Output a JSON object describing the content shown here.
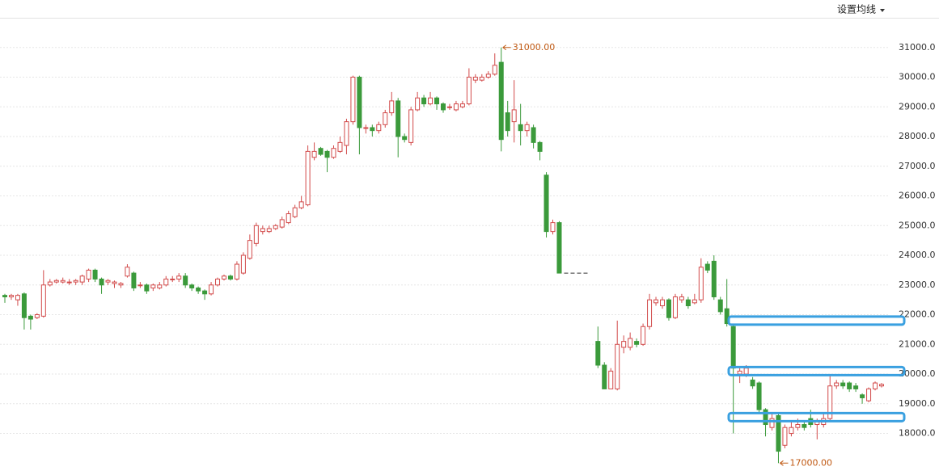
{
  "chart_data": {
    "type": "candlestick",
    "settings_button": "设置均线",
    "ylim": [
      16600,
      32000
    ],
    "yticks": [
      {
        "value": 18000,
        "label": "18000.0"
      },
      {
        "value": 19000,
        "label": "19000.0"
      },
      {
        "value": 20000,
        "label": "20000.0"
      },
      {
        "value": 21000,
        "label": "21000.0"
      },
      {
        "value": 22000,
        "label": "22000.0"
      },
      {
        "value": 23000,
        "label": "23000.0"
      },
      {
        "value": 24000,
        "label": "24000.0"
      },
      {
        "value": 25000,
        "label": "25000.0"
      },
      {
        "value": 26000,
        "label": "26000.0"
      },
      {
        "value": 27000,
        "label": "27000.0"
      },
      {
        "value": 28000,
        "label": "28000.0"
      },
      {
        "value": 29000,
        "label": "29000.0"
      },
      {
        "value": 30000,
        "label": "30000.0"
      },
      {
        "value": 31000,
        "label": "31000.0"
      }
    ],
    "grid": true,
    "up_color": "#d24a4a",
    "down_color": "#3b9a3b",
    "level_color": "#3aa0e0",
    "annotations": [
      {
        "value": 31000,
        "label": "31000.00"
      },
      {
        "value": 17000,
        "label": "17000.00"
      }
    ],
    "levels": [
      21800,
      20100,
      18550
    ],
    "candles": [
      {
        "open": 22650,
        "close": 22600,
        "high": 22700,
        "low": 22400
      },
      {
        "open": 22600,
        "close": 22650,
        "high": 22700,
        "low": 22500
      },
      {
        "open": 22500,
        "close": 22650,
        "high": 22700,
        "low": 22300
      },
      {
        "open": 22700,
        "close": 21900,
        "high": 22750,
        "low": 21500
      },
      {
        "open": 21950,
        "close": 21850,
        "high": 22000,
        "low": 21500
      },
      {
        "open": 21900,
        "close": 22000,
        "high": 22050,
        "low": 21850
      },
      {
        "open": 21950,
        "close": 23000,
        "high": 23500,
        "low": 21900
      },
      {
        "open": 23000,
        "close": 23100,
        "high": 23200,
        "low": 22950
      },
      {
        "open": 23100,
        "close": 23150,
        "high": 23200,
        "low": 23050
      },
      {
        "open": 23100,
        "close": 23150,
        "high": 23250,
        "low": 23050
      },
      {
        "open": 23100,
        "close": 23100,
        "high": 23200,
        "low": 23000
      },
      {
        "open": 23100,
        "close": 23150,
        "high": 23200,
        "low": 23000
      },
      {
        "open": 23100,
        "close": 23300,
        "high": 23350,
        "low": 23000
      },
      {
        "open": 23200,
        "close": 23500,
        "high": 23550,
        "low": 23100
      },
      {
        "open": 23500,
        "close": 23200,
        "high": 23550,
        "low": 23100
      },
      {
        "open": 23200,
        "close": 23000,
        "high": 23250,
        "low": 22700
      },
      {
        "open": 23100,
        "close": 23150,
        "high": 23200,
        "low": 23000
      },
      {
        "open": 23050,
        "close": 23100,
        "high": 23150,
        "low": 22900
      },
      {
        "open": 23000,
        "close": 23050,
        "high": 23100,
        "low": 22900
      },
      {
        "open": 23300,
        "close": 23600,
        "high": 23700,
        "low": 23250
      },
      {
        "open": 23400,
        "close": 22900,
        "high": 23450,
        "low": 22800
      },
      {
        "open": 23000,
        "close": 23000,
        "high": 23100,
        "low": 22900
      },
      {
        "open": 23000,
        "close": 22800,
        "high": 23050,
        "low": 22700
      },
      {
        "open": 22900,
        "close": 23000,
        "high": 23050,
        "low": 22800
      },
      {
        "open": 22900,
        "close": 23000,
        "high": 23100,
        "low": 22850
      },
      {
        "open": 23000,
        "close": 23200,
        "high": 23300,
        "low": 22950
      },
      {
        "open": 23200,
        "close": 23200,
        "high": 23300,
        "low": 23100
      },
      {
        "open": 23200,
        "close": 23300,
        "high": 23400,
        "low": 23100
      },
      {
        "open": 23300,
        "close": 23000,
        "high": 23400,
        "low": 22900
      },
      {
        "open": 23000,
        "close": 22900,
        "high": 23050,
        "low": 22800
      },
      {
        "open": 22900,
        "close": 22800,
        "high": 22950,
        "low": 22700
      },
      {
        "open": 22800,
        "close": 22700,
        "high": 22850,
        "low": 22500
      },
      {
        "open": 22700,
        "close": 23000,
        "high": 23100,
        "low": 22650
      },
      {
        "open": 23000,
        "close": 23200,
        "high": 23250,
        "low": 22950
      },
      {
        "open": 23200,
        "close": 23300,
        "high": 23350,
        "low": 23150
      },
      {
        "open": 23300,
        "close": 23200,
        "high": 23350,
        "low": 23150
      },
      {
        "open": 23200,
        "close": 23700,
        "high": 23800,
        "low": 23150
      },
      {
        "open": 23400,
        "close": 24000,
        "high": 24100,
        "low": 23350
      },
      {
        "open": 23900,
        "close": 24500,
        "high": 24700,
        "low": 23850
      },
      {
        "open": 24400,
        "close": 25000,
        "high": 25100,
        "low": 24300
      },
      {
        "open": 24800,
        "close": 24900,
        "high": 25000,
        "low": 24700
      },
      {
        "open": 24800,
        "close": 24900,
        "high": 25000,
        "low": 24750
      },
      {
        "open": 24900,
        "close": 25000,
        "high": 25050,
        "low": 24850
      },
      {
        "open": 24950,
        "close": 25200,
        "high": 25300,
        "low": 24900
      },
      {
        "open": 25100,
        "close": 25400,
        "high": 25500,
        "low": 25050
      },
      {
        "open": 25300,
        "close": 25600,
        "high": 25700,
        "low": 25250
      },
      {
        "open": 25600,
        "close": 25800,
        "high": 26000,
        "low": 25550
      },
      {
        "open": 25700,
        "close": 27500,
        "high": 27700,
        "low": 25650
      },
      {
        "open": 27300,
        "close": 27500,
        "high": 27800,
        "low": 27200
      },
      {
        "open": 27600,
        "close": 27400,
        "high": 27650,
        "low": 27350
      },
      {
        "open": 27500,
        "close": 27300,
        "high": 27550,
        "low": 26800
      },
      {
        "open": 27300,
        "close": 27600,
        "high": 27700,
        "low": 27250
      },
      {
        "open": 27500,
        "close": 27800,
        "high": 28000,
        "low": 27450
      },
      {
        "open": 27700,
        "close": 28500,
        "high": 28600,
        "low": 27400
      },
      {
        "open": 28500,
        "close": 30000,
        "high": 30050,
        "low": 28400
      },
      {
        "open": 30000,
        "close": 28300,
        "high": 30050,
        "low": 27400
      },
      {
        "open": 28300,
        "close": 28300,
        "high": 28400,
        "low": 28100
      },
      {
        "open": 28300,
        "close": 28200,
        "high": 28400,
        "low": 28000
      },
      {
        "open": 28200,
        "close": 28400,
        "high": 28500,
        "low": 28100
      },
      {
        "open": 28400,
        "close": 28800,
        "high": 28900,
        "low": 28300
      },
      {
        "open": 28800,
        "close": 29200,
        "high": 29500,
        "low": 28700
      },
      {
        "open": 29200,
        "close": 28000,
        "high": 29300,
        "low": 27300
      },
      {
        "open": 28000,
        "close": 27900,
        "high": 28100,
        "low": 27800
      },
      {
        "open": 27800,
        "close": 28900,
        "high": 29000,
        "low": 27700
      },
      {
        "open": 28900,
        "close": 29300,
        "high": 29500,
        "low": 28850
      },
      {
        "open": 29300,
        "close": 29100,
        "high": 29400,
        "low": 29000
      },
      {
        "open": 29100,
        "close": 29300,
        "high": 29500,
        "low": 29050
      },
      {
        "open": 29300,
        "close": 29100,
        "high": 29350,
        "low": 28900
      },
      {
        "open": 29100,
        "close": 28900,
        "high": 29150,
        "low": 28800
      },
      {
        "open": 29000,
        "close": 29000,
        "high": 29100,
        "low": 28900
      },
      {
        "open": 28900,
        "close": 29100,
        "high": 29200,
        "low": 28850
      },
      {
        "open": 29000,
        "close": 29100,
        "high": 29200,
        "low": 28950
      },
      {
        "open": 29100,
        "close": 30000,
        "high": 30300,
        "low": 29050
      },
      {
        "open": 29900,
        "close": 30000,
        "high": 30100,
        "low": 29800
      },
      {
        "open": 29900,
        "close": 30000,
        "high": 30100,
        "low": 29850
      },
      {
        "open": 30000,
        "close": 30100,
        "high": 30200,
        "low": 29950
      },
      {
        "open": 30100,
        "close": 30400,
        "high": 30800,
        "low": 30050
      },
      {
        "open": 30500,
        "close": 27900,
        "high": 31000,
        "low": 27500
      },
      {
        "open": 28800,
        "close": 28200,
        "high": 29200,
        "low": 28000
      },
      {
        "open": 28500,
        "close": 28900,
        "high": 29900,
        "low": 27800
      },
      {
        "open": 28400,
        "close": 28200,
        "high": 29100,
        "low": 27700
      },
      {
        "open": 28200,
        "close": 28400,
        "high": 28500,
        "low": 28000
      },
      {
        "open": 28300,
        "close": 27800,
        "high": 28400,
        "low": 27600
      },
      {
        "open": 27800,
        "close": 27500,
        "high": 27850,
        "low": 27200
      },
      {
        "open": 26700,
        "close": 24800,
        "high": 26800,
        "low": 24600
      },
      {
        "open": 24800,
        "close": 25100,
        "high": 25200,
        "low": 24700
      },
      {
        "open": 25100,
        "close": 23400,
        "high": 25150,
        "low": 23400
      },
      null,
      null,
      null,
      null,
      null,
      {
        "open": 21100,
        "close": 20300,
        "high": 21600,
        "low": 20200
      },
      {
        "open": 20300,
        "close": 19500,
        "high": 20400,
        "low": 19500
      },
      {
        "open": 19500,
        "close": 20100,
        "high": 20200,
        "low": 19500
      },
      {
        "open": 19500,
        "close": 21000,
        "high": 21800,
        "low": 19450
      },
      {
        "open": 20900,
        "close": 21100,
        "high": 21300,
        "low": 20700
      },
      {
        "open": 20900,
        "close": 21200,
        "high": 21400,
        "low": 20800
      },
      {
        "open": 21100,
        "close": 21000,
        "high": 21200,
        "low": 20900
      },
      {
        "open": 21000,
        "close": 21600,
        "high": 21700,
        "low": 20950
      },
      {
        "open": 21600,
        "close": 22500,
        "high": 22700,
        "low": 21500
      },
      {
        "open": 22400,
        "close": 22500,
        "high": 22600,
        "low": 22300
      },
      {
        "open": 22300,
        "close": 22500,
        "high": 22600,
        "low": 22200
      },
      {
        "open": 22500,
        "close": 21900,
        "high": 22550,
        "low": 21800
      },
      {
        "open": 21900,
        "close": 22600,
        "high": 22700,
        "low": 21850
      },
      {
        "open": 22500,
        "close": 22600,
        "high": 22700,
        "low": 22400
      },
      {
        "open": 22500,
        "close": 22300,
        "high": 22600,
        "low": 22200
      },
      {
        "open": 22400,
        "close": 22500,
        "high": 22700,
        "low": 22350
      },
      {
        "open": 22500,
        "close": 23600,
        "high": 23900,
        "low": 22400
      },
      {
        "open": 23700,
        "close": 23500,
        "high": 23800,
        "low": 23400
      },
      {
        "open": 23800,
        "close": 22600,
        "high": 24000,
        "low": 22500
      },
      {
        "open": 22500,
        "close": 22100,
        "high": 22600,
        "low": 22000
      },
      {
        "open": 22200,
        "close": 21700,
        "high": 23200,
        "low": 21600
      },
      {
        "open": 21600,
        "close": 20200,
        "high": 21700,
        "low": 18000
      },
      {
        "open": 20000,
        "close": 20100,
        "high": 20200,
        "low": 19700
      },
      {
        "open": 20000,
        "close": 20200,
        "high": 20300,
        "low": 19900
      },
      {
        "open": 19800,
        "close": 19600,
        "high": 19900,
        "low": 19500
      },
      {
        "open": 19700,
        "close": 18800,
        "high": 19750,
        "low": 18700
      },
      {
        "open": 18800,
        "close": 18300,
        "high": 18850,
        "low": 17900
      },
      {
        "open": 18200,
        "close": 18500,
        "high": 18700,
        "low": 18100
      },
      {
        "open": 18600,
        "close": 17400,
        "high": 18700,
        "low": 17000
      },
      {
        "open": 17600,
        "close": 18200,
        "high": 18300,
        "low": 17500
      },
      {
        "open": 18000,
        "close": 18200,
        "high": 18400,
        "low": 17900
      },
      {
        "open": 18200,
        "close": 18300,
        "high": 18500,
        "low": 18100
      },
      {
        "open": 18300,
        "close": 18200,
        "high": 18400,
        "low": 18100
      },
      {
        "open": 18500,
        "close": 18300,
        "high": 18800,
        "low": 18200
      },
      {
        "open": 18300,
        "close": 18400,
        "high": 18500,
        "low": 17800
      },
      {
        "open": 18300,
        "close": 18500,
        "high": 18700,
        "low": 18200
      },
      {
        "open": 18500,
        "close": 19600,
        "high": 20000,
        "low": 18450
      },
      {
        "open": 19600,
        "close": 19700,
        "high": 19800,
        "low": 19500
      },
      {
        "open": 19700,
        "close": 19600,
        "high": 19800,
        "low": 19500
      },
      {
        "open": 19700,
        "close": 19500,
        "high": 19750,
        "low": 19400
      },
      {
        "open": 19600,
        "close": 19500,
        "high": 19700,
        "low": 19400
      },
      {
        "open": 19300,
        "close": 19200,
        "high": 19350,
        "low": 19000
      },
      {
        "open": 19100,
        "close": 19500,
        "high": 19550,
        "low": 19050
      },
      {
        "open": 19500,
        "close": 19700,
        "high": 19750,
        "low": 19450
      },
      {
        "open": 19600,
        "close": 19650,
        "high": 19700,
        "low": 19550
      }
    ]
  }
}
